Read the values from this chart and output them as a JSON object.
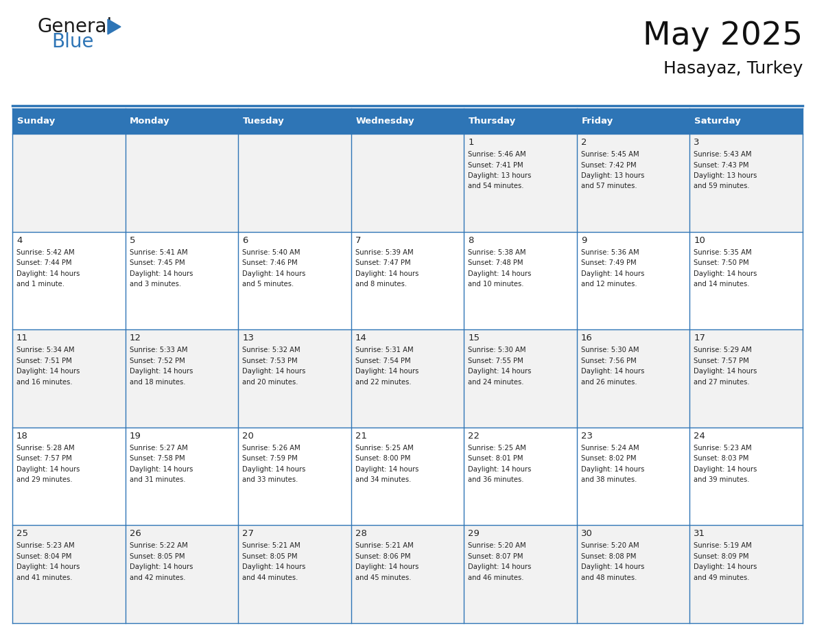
{
  "title": "May 2025",
  "subtitle": "Hasayaz, Turkey",
  "header_bg": "#2E75B6",
  "header_text_color": "#FFFFFF",
  "cell_bg_even": "#F2F2F2",
  "cell_bg_odd": "#FFFFFF",
  "border_color": "#2E75B6",
  "text_color": "#222222",
  "day_names": [
    "Sunday",
    "Monday",
    "Tuesday",
    "Wednesday",
    "Thursday",
    "Friday",
    "Saturday"
  ],
  "weeks": [
    [
      {
        "day": "",
        "info": ""
      },
      {
        "day": "",
        "info": ""
      },
      {
        "day": "",
        "info": ""
      },
      {
        "day": "",
        "info": ""
      },
      {
        "day": "1",
        "info": "Sunrise: 5:46 AM\nSunset: 7:41 PM\nDaylight: 13 hours\nand 54 minutes."
      },
      {
        "day": "2",
        "info": "Sunrise: 5:45 AM\nSunset: 7:42 PM\nDaylight: 13 hours\nand 57 minutes."
      },
      {
        "day": "3",
        "info": "Sunrise: 5:43 AM\nSunset: 7:43 PM\nDaylight: 13 hours\nand 59 minutes."
      }
    ],
    [
      {
        "day": "4",
        "info": "Sunrise: 5:42 AM\nSunset: 7:44 PM\nDaylight: 14 hours\nand 1 minute."
      },
      {
        "day": "5",
        "info": "Sunrise: 5:41 AM\nSunset: 7:45 PM\nDaylight: 14 hours\nand 3 minutes."
      },
      {
        "day": "6",
        "info": "Sunrise: 5:40 AM\nSunset: 7:46 PM\nDaylight: 14 hours\nand 5 minutes."
      },
      {
        "day": "7",
        "info": "Sunrise: 5:39 AM\nSunset: 7:47 PM\nDaylight: 14 hours\nand 8 minutes."
      },
      {
        "day": "8",
        "info": "Sunrise: 5:38 AM\nSunset: 7:48 PM\nDaylight: 14 hours\nand 10 minutes."
      },
      {
        "day": "9",
        "info": "Sunrise: 5:36 AM\nSunset: 7:49 PM\nDaylight: 14 hours\nand 12 minutes."
      },
      {
        "day": "10",
        "info": "Sunrise: 5:35 AM\nSunset: 7:50 PM\nDaylight: 14 hours\nand 14 minutes."
      }
    ],
    [
      {
        "day": "11",
        "info": "Sunrise: 5:34 AM\nSunset: 7:51 PM\nDaylight: 14 hours\nand 16 minutes."
      },
      {
        "day": "12",
        "info": "Sunrise: 5:33 AM\nSunset: 7:52 PM\nDaylight: 14 hours\nand 18 minutes."
      },
      {
        "day": "13",
        "info": "Sunrise: 5:32 AM\nSunset: 7:53 PM\nDaylight: 14 hours\nand 20 minutes."
      },
      {
        "day": "14",
        "info": "Sunrise: 5:31 AM\nSunset: 7:54 PM\nDaylight: 14 hours\nand 22 minutes."
      },
      {
        "day": "15",
        "info": "Sunrise: 5:30 AM\nSunset: 7:55 PM\nDaylight: 14 hours\nand 24 minutes."
      },
      {
        "day": "16",
        "info": "Sunrise: 5:30 AM\nSunset: 7:56 PM\nDaylight: 14 hours\nand 26 minutes."
      },
      {
        "day": "17",
        "info": "Sunrise: 5:29 AM\nSunset: 7:57 PM\nDaylight: 14 hours\nand 27 minutes."
      }
    ],
    [
      {
        "day": "18",
        "info": "Sunrise: 5:28 AM\nSunset: 7:57 PM\nDaylight: 14 hours\nand 29 minutes."
      },
      {
        "day": "19",
        "info": "Sunrise: 5:27 AM\nSunset: 7:58 PM\nDaylight: 14 hours\nand 31 minutes."
      },
      {
        "day": "20",
        "info": "Sunrise: 5:26 AM\nSunset: 7:59 PM\nDaylight: 14 hours\nand 33 minutes."
      },
      {
        "day": "21",
        "info": "Sunrise: 5:25 AM\nSunset: 8:00 PM\nDaylight: 14 hours\nand 34 minutes."
      },
      {
        "day": "22",
        "info": "Sunrise: 5:25 AM\nSunset: 8:01 PM\nDaylight: 14 hours\nand 36 minutes."
      },
      {
        "day": "23",
        "info": "Sunrise: 5:24 AM\nSunset: 8:02 PM\nDaylight: 14 hours\nand 38 minutes."
      },
      {
        "day": "24",
        "info": "Sunrise: 5:23 AM\nSunset: 8:03 PM\nDaylight: 14 hours\nand 39 minutes."
      }
    ],
    [
      {
        "day": "25",
        "info": "Sunrise: 5:23 AM\nSunset: 8:04 PM\nDaylight: 14 hours\nand 41 minutes."
      },
      {
        "day": "26",
        "info": "Sunrise: 5:22 AM\nSunset: 8:05 PM\nDaylight: 14 hours\nand 42 minutes."
      },
      {
        "day": "27",
        "info": "Sunrise: 5:21 AM\nSunset: 8:05 PM\nDaylight: 14 hours\nand 44 minutes."
      },
      {
        "day": "28",
        "info": "Sunrise: 5:21 AM\nSunset: 8:06 PM\nDaylight: 14 hours\nand 45 minutes."
      },
      {
        "day": "29",
        "info": "Sunrise: 5:20 AM\nSunset: 8:07 PM\nDaylight: 14 hours\nand 46 minutes."
      },
      {
        "day": "30",
        "info": "Sunrise: 5:20 AM\nSunset: 8:08 PM\nDaylight: 14 hours\nand 48 minutes."
      },
      {
        "day": "31",
        "info": "Sunrise: 5:19 AM\nSunset: 8:09 PM\nDaylight: 14 hours\nand 49 minutes."
      }
    ]
  ],
  "logo_text_general": "General",
  "logo_text_blue": "Blue",
  "logo_color_general": "#1a1a1a",
  "logo_color_blue": "#2E75B6",
  "logo_triangle_color": "#2E75B6",
  "fig_width": 11.88,
  "fig_height": 9.18,
  "dpi": 100
}
